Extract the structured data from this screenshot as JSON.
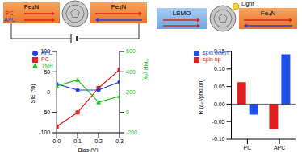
{
  "diagram": {
    "left": {
      "electrodes": [
        "Fe₄N",
        "Fe₄N"
      ],
      "states": [
        {
          "label": "PC",
          "color": "#e02020"
        },
        {
          "label": "APC",
          "color": "#2040e0"
        }
      ]
    },
    "right": {
      "electrodes": [
        "LSMO",
        "Fe₄N"
      ],
      "light": "Light"
    }
  },
  "chart_data": [
    {
      "type": "line",
      "xlabel": "Bias (V)",
      "ylabel": "SIE (%)",
      "y2label": "TMR (%)",
      "x": [
        0,
        0.1,
        0.2,
        0.3
      ],
      "xlim": [
        0,
        0.3
      ],
      "xticks": [
        {
          "value": 0,
          "label": "0.0"
        },
        0.1,
        0.2,
        0.3
      ],
      "ylim": [
        -100,
        100
      ],
      "yticks": [
        -100,
        -50,
        0,
        50,
        100
      ],
      "y2lim": [
        -200,
        600
      ],
      "y2ticks": [
        -200,
        0,
        200,
        400,
        600
      ],
      "legend": "upper left",
      "series": [
        {
          "name": "PC",
          "color": "#e02020",
          "marker": "square",
          "values": [
            -85,
            -50,
            10,
            55
          ]
        },
        {
          "name": "APC",
          "color": "#2040e0",
          "marker": "circle",
          "values": [
            20,
            5,
            5,
            25
          ]
        },
        {
          "name": "TMR",
          "color": "#22c022",
          "marker": "triangle",
          "axis": "y2",
          "values": [
            260,
            320,
            100,
            160
          ]
        }
      ]
    },
    {
      "type": "bar",
      "ylabel": "R (a₀²/photon)",
      "categories": [
        "PC",
        "APC"
      ],
      "ylim": [
        -0.1,
        0.15
      ],
      "yticks": [
        {
          "value": -0.1,
          "label": "-0.10"
        },
        {
          "value": -0.05,
          "label": "-0.05"
        },
        {
          "value": 0,
          "label": "0.00"
        },
        {
          "value": 0.05,
          "label": "0.05"
        },
        {
          "value": 0.1,
          "label": "0.10"
        },
        {
          "value": 0.15,
          "label": "0.15"
        }
      ],
      "legend": "upper left",
      "series": [
        {
          "name": "spin up",
          "color": "#e02020",
          "values": [
            0.062,
            -0.072
          ]
        },
        {
          "name": "spin down",
          "color": "#2050e8",
          "values": [
            -0.03,
            0.142
          ]
        }
      ]
    }
  ]
}
